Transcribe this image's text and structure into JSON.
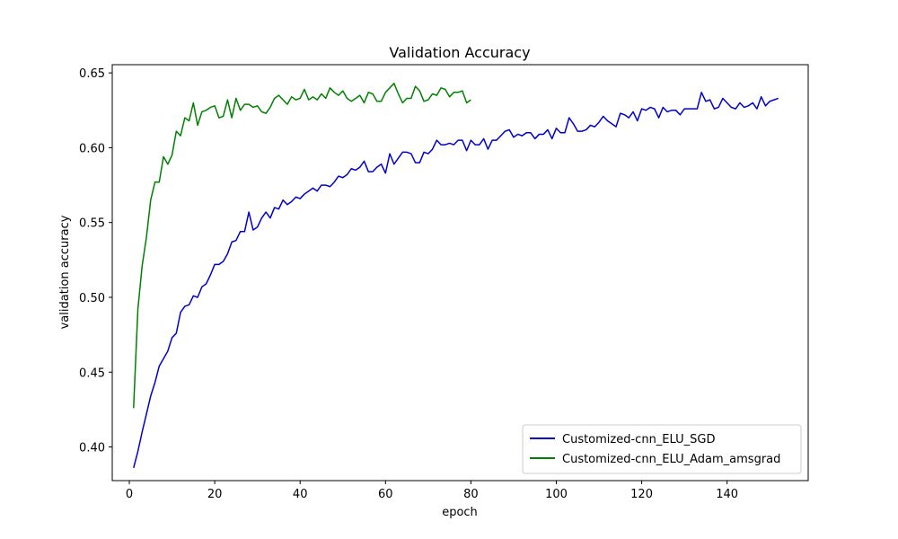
{
  "chart_data": {
    "type": "line",
    "title": "Validation Accuracy",
    "xlabel": "epoch",
    "ylabel": "validation accuracy",
    "xlim": [
      -4,
      159
    ],
    "ylim": [
      0.3775,
      0.6555
    ],
    "xticks": [
      0,
      20,
      40,
      60,
      80,
      100,
      120,
      140
    ],
    "xtick_labels": [
      "0",
      "20",
      "40",
      "60",
      "80",
      "100",
      "120",
      "140"
    ],
    "yticks": [
      0.4,
      0.45,
      0.5,
      0.55,
      0.6,
      0.65
    ],
    "ytick_labels": [
      "0.40",
      "0.45",
      "0.50",
      "0.55",
      "0.60",
      "0.65"
    ],
    "grid": false,
    "legend_position": "bottom-right",
    "series": [
      {
        "name": "Customized-cnn_ELU_SGD",
        "color": "#0000cc",
        "x_start": 1,
        "values": [
          0.386,
          0.397,
          0.41,
          0.422,
          0.434,
          0.443,
          0.454,
          0.459,
          0.464,
          0.473,
          0.476,
          0.49,
          0.494,
          0.495,
          0.501,
          0.5,
          0.507,
          0.509,
          0.515,
          0.522,
          0.522,
          0.524,
          0.529,
          0.537,
          0.538,
          0.544,
          0.544,
          0.557,
          0.545,
          0.547,
          0.553,
          0.557,
          0.553,
          0.56,
          0.559,
          0.565,
          0.562,
          0.564,
          0.567,
          0.566,
          0.569,
          0.571,
          0.573,
          0.571,
          0.575,
          0.575,
          0.574,
          0.577,
          0.581,
          0.58,
          0.582,
          0.586,
          0.585,
          0.587,
          0.591,
          0.584,
          0.584,
          0.587,
          0.589,
          0.583,
          0.596,
          0.589,
          0.593,
          0.597,
          0.597,
          0.596,
          0.59,
          0.59,
          0.597,
          0.596,
          0.599,
          0.605,
          0.602,
          0.602,
          0.603,
          0.602,
          0.605,
          0.605,
          0.598,
          0.605,
          0.602,
          0.602,
          0.606,
          0.599,
          0.605,
          0.605,
          0.608,
          0.611,
          0.612,
          0.607,
          0.609,
          0.608,
          0.61,
          0.61,
          0.606,
          0.609,
          0.609,
          0.612,
          0.606,
          0.613,
          0.61,
          0.61,
          0.62,
          0.616,
          0.611,
          0.611,
          0.612,
          0.615,
          0.614,
          0.617,
          0.621,
          0.618,
          0.616,
          0.614,
          0.623,
          0.622,
          0.62,
          0.624,
          0.618,
          0.626,
          0.625,
          0.627,
          0.626,
          0.62,
          0.627,
          0.624,
          0.625,
          0.625,
          0.622,
          0.626,
          0.626,
          0.626,
          0.626,
          0.637,
          0.631,
          0.632,
          0.626,
          0.627,
          0.633,
          0.63,
          0.627,
          0.626,
          0.63,
          0.627,
          0.628,
          0.63,
          0.626,
          0.634,
          0.628,
          0.631,
          0.632,
          0.633
        ]
      },
      {
        "name": "Customized-cnn_ELU_Adam_amsgrad",
        "color": "#008000",
        "x_start": 1,
        "values": [
          0.426,
          0.492,
          0.521,
          0.54,
          0.565,
          0.577,
          0.577,
          0.594,
          0.589,
          0.595,
          0.611,
          0.608,
          0.62,
          0.618,
          0.63,
          0.615,
          0.624,
          0.625,
          0.627,
          0.628,
          0.62,
          0.621,
          0.632,
          0.62,
          0.633,
          0.625,
          0.629,
          0.629,
          0.627,
          0.628,
          0.624,
          0.623,
          0.627,
          0.633,
          0.635,
          0.632,
          0.629,
          0.634,
          0.632,
          0.633,
          0.639,
          0.632,
          0.634,
          0.632,
          0.636,
          0.633,
          0.64,
          0.637,
          0.635,
          0.638,
          0.633,
          0.631,
          0.633,
          0.635,
          0.63,
          0.637,
          0.636,
          0.631,
          0.631,
          0.637,
          0.64,
          0.643,
          0.636,
          0.63,
          0.633,
          0.633,
          0.641,
          0.638,
          0.631,
          0.632,
          0.636,
          0.635,
          0.64,
          0.639,
          0.634,
          0.637,
          0.637,
          0.638,
          0.63,
          0.632
        ]
      }
    ]
  }
}
